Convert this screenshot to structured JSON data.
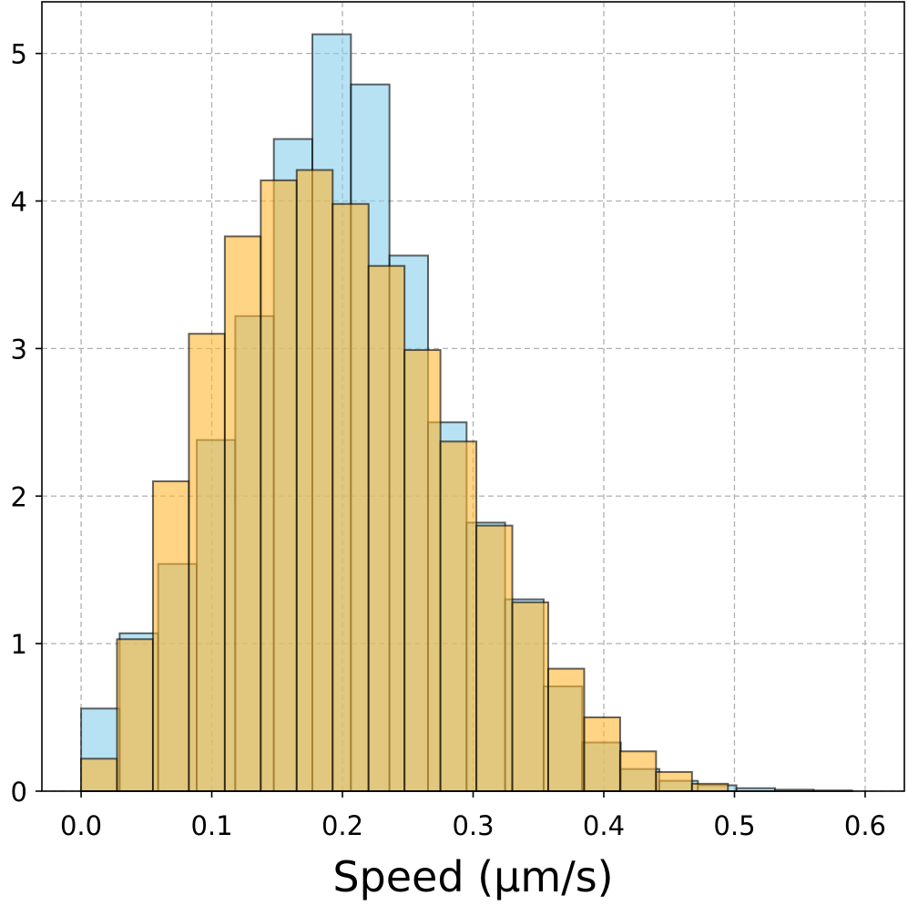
{
  "chart_data": {
    "type": "bar",
    "subtype": "overlaid-histogram",
    "title": "",
    "xlabel": "Speed (μm/s)",
    "ylabel": "",
    "xlim": [
      -0.03,
      0.63
    ],
    "ylim": [
      0,
      5.35
    ],
    "grid": true,
    "legend": "none",
    "xticks": [
      {
        "value": 0.0,
        "label": "0.0"
      },
      {
        "value": 0.1,
        "label": "0.1"
      },
      {
        "value": 0.2,
        "label": "0.2"
      },
      {
        "value": 0.3,
        "label": "0.3"
      },
      {
        "value": 0.4,
        "label": "0.4"
      },
      {
        "value": 0.5,
        "label": "0.5"
      },
      {
        "value": 0.6,
        "label": "0.6"
      }
    ],
    "yticks": [
      {
        "value": 0,
        "label": "0"
      },
      {
        "value": 1,
        "label": "1"
      },
      {
        "value": 2,
        "label": "2"
      },
      {
        "value": 3,
        "label": "3"
      },
      {
        "value": 4,
        "label": "4"
      },
      {
        "value": 5,
        "label": "5"
      }
    ],
    "series": [
      {
        "color": "#87CEEB",
        "bin_edges": [
          0.0,
          0.0295,
          0.059,
          0.0885,
          0.118,
          0.1475,
          0.177,
          0.2065,
          0.236,
          0.2655,
          0.295,
          0.3245,
          0.354,
          0.3835,
          0.413,
          0.4425,
          0.472,
          0.5015,
          0.531,
          0.5605,
          0.59
        ],
        "values": [
          0.56,
          1.07,
          1.54,
          2.38,
          3.22,
          4.42,
          5.13,
          4.79,
          3.63,
          2.5,
          1.82,
          1.3,
          0.71,
          0.33,
          0.15,
          0.07,
          0.04,
          0.02,
          0.01,
          0.005
        ]
      },
      {
        "color": "#FFB732",
        "bin_edges": [
          0.0,
          0.0275,
          0.055,
          0.0825,
          0.11,
          0.1375,
          0.165,
          0.1925,
          0.22,
          0.2475,
          0.275,
          0.3025,
          0.33,
          0.3575,
          0.385,
          0.4125,
          0.44,
          0.4675,
          0.495
        ],
        "values": [
          0.22,
          1.03,
          2.1,
          3.1,
          3.76,
          4.14,
          4.21,
          3.98,
          3.56,
          2.99,
          2.37,
          1.8,
          1.28,
          0.83,
          0.5,
          0.27,
          0.13,
          0.05
        ]
      }
    ]
  }
}
